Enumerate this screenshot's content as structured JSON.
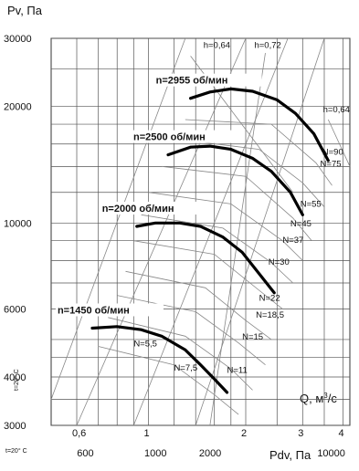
{
  "chart_data": {
    "type": "line",
    "title": "",
    "ylabel": "Pv, Па",
    "xlabel": "Q, м³/с",
    "x2label": "Pdv, Па",
    "yscale": "log",
    "xscale": "log",
    "ylim": [
      3000,
      30000
    ],
    "xlim": [
      0.5,
      4.2
    ],
    "y_ticks": [
      "30000",
      "20000",
      "10000",
      "6000",
      "4000",
      "3000"
    ],
    "y_tick_values": [
      30000,
      20000,
      10000,
      6000,
      4000,
      3000
    ],
    "x_ticks": [
      "0,6",
      "1",
      "2",
      "3",
      "4"
    ],
    "x_tick_values": [
      0.6,
      1,
      2,
      3,
      4
    ],
    "pdv_ticks": [
      "600",
      "1000",
      "2000",
      "10000"
    ],
    "pdv_tick_values": [
      600,
      1000,
      2000,
      10000
    ],
    "temperature_label_y": "t=20° C",
    "temperature_label_x": "t=20° C",
    "series": [
      {
        "name": "n=2955 об/мин",
        "x": [
          1.35,
          1.55,
          1.8,
          2.1,
          2.5,
          2.85,
          3.25,
          3.6
        ],
        "y": [
          21000,
          21800,
          22200,
          21900,
          20800,
          19200,
          17000,
          14500
        ]
      },
      {
        "name": "n=2500 об/мин",
        "x": [
          1.15,
          1.35,
          1.55,
          1.8,
          2.1,
          2.4,
          2.75,
          3.0
        ],
        "y": [
          15000,
          15700,
          15800,
          15500,
          14700,
          13600,
          12000,
          10500
        ]
      },
      {
        "name": "n=2000 об/мин",
        "x": [
          0.92,
          1.05,
          1.25,
          1.45,
          1.7,
          1.95,
          2.2,
          2.45
        ],
        "y": [
          9800,
          10000,
          10000,
          9800,
          9200,
          8400,
          7400,
          6600
        ]
      },
      {
        "name": "n=1450 об/мин",
        "x": [
          0.67,
          0.8,
          0.95,
          1.1,
          1.3,
          1.45,
          1.6,
          1.75
        ],
        "y": [
          5350,
          5400,
          5300,
          5100,
          4700,
          4300,
          3950,
          3650
        ]
      }
    ],
    "power_labels": [
      "N=90",
      "N=75",
      "N=55",
      "N=45",
      "N=37",
      "N=30",
      "N=22",
      "N=18,5",
      "N=15",
      "N=11",
      "N=7,5",
      "N=5,5"
    ],
    "efficiency_labels": [
      "h=0,64",
      "h=0,72",
      "h=0,64"
    ],
    "grid": true,
    "legend": "none"
  }
}
